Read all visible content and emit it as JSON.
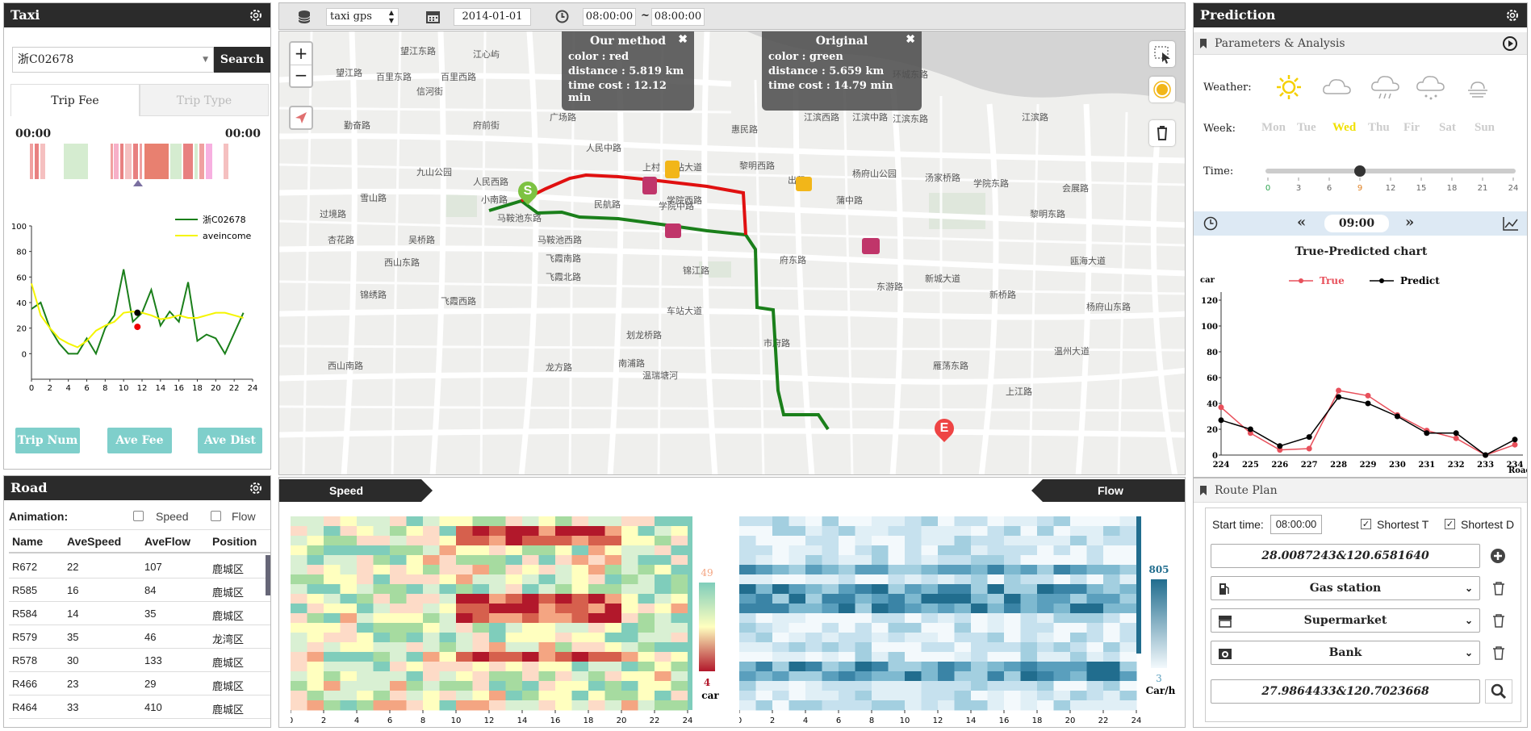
{
  "taxi_panel": {
    "title": "Taxi",
    "plate_value": "浙C02678",
    "search_label": "Search",
    "tabs": [
      "Trip Fee",
      "Trip Type"
    ],
    "time_start": "00:00",
    "time_end": "00:00",
    "buttons": [
      "Trip Num",
      "Ave Fee",
      "Ave Dist"
    ]
  },
  "income_chart": {
    "legend": [
      "浙C02678",
      "aveincome"
    ],
    "chart_data": {
      "type": "line",
      "x": [
        0,
        1,
        2,
        3,
        4,
        5,
        6,
        7,
        8,
        9,
        10,
        11,
        12,
        13,
        14,
        15,
        16,
        17,
        18,
        19,
        20,
        21,
        22,
        23,
        24
      ],
      "series": [
        {
          "name": "浙C02678",
          "values": [
            35,
            40,
            20,
            8,
            0,
            0,
            12,
            0,
            20,
            30,
            66,
            25,
            32,
            50,
            22,
            33,
            25,
            56,
            10,
            15,
            12,
            0,
            16,
            32,
            null
          ]
        },
        {
          "name": "aveincome",
          "values": [
            55,
            30,
            20,
            12,
            8,
            5,
            10,
            18,
            22,
            25,
            32,
            33,
            32,
            30,
            27,
            28,
            30,
            28,
            28,
            30,
            32,
            32,
            30,
            28,
            null
          ]
        }
      ],
      "yticks": [
        0,
        20,
        40,
        60,
        80,
        100
      ],
      "xticks": [
        0,
        2,
        4,
        6,
        8,
        10,
        12,
        14,
        16,
        18,
        20,
        22,
        24
      ],
      "ylim": [
        -20,
        100
      ],
      "markers": [
        {
          "x": 11.5,
          "y": 32,
          "color": "#000"
        },
        {
          "x": 11.5,
          "y": 21,
          "color": "#e00"
        }
      ]
    }
  },
  "top_bar": {
    "dataset": "taxi gps",
    "date": "2014-01-01",
    "time_from": "08:00:00",
    "tilde": "~",
    "time_to": "08:00:00"
  },
  "map": {
    "zoom_in": "+",
    "zoom_out": "−",
    "tooltip_ours": {
      "title": "Our method",
      "color": "color : red",
      "distance": "distance : 5.819 km",
      "time": "time cost : 12.12 min"
    },
    "tooltip_orig": {
      "title": "Original",
      "color": "color : green",
      "distance": "distance : 5.659 km",
      "time": "time cost : 14.79 min"
    },
    "start_marker": "S",
    "end_marker": "E",
    "labels": [
      "望江东路",
      "江心屿",
      "望江路",
      "百里东路",
      "百里西路",
      "信河街",
      "府前街",
      "广场路",
      "人民西路",
      "小南路",
      "雪山路",
      "过境路",
      "马鞍池东路",
      "吴桥路",
      "杏花路",
      "西山东路",
      "马鞍池西路",
      "锦绣路",
      "飞霞南路",
      "飞霞北路",
      "人民中路",
      "民航路",
      "学院中路",
      "车站大道",
      "上村",
      "惠民路",
      "黎明西路",
      "出租",
      "杨府山公园",
      "汤家桥路",
      "学院东路",
      "会展路",
      "江滨西路",
      "江滨中路",
      "江滨东路",
      "勤奋路",
      "九山公园",
      "划龙桥路",
      "龙方路",
      "南浦路",
      "市府路",
      "府东路",
      "新城大道",
      "瓯海大道",
      "雁荡东路",
      "上江路",
      "西山南路",
      "环城东路",
      "江滨路",
      "车站大道",
      "学院西路",
      "蒲中路",
      "温瑞塘河",
      "锦江路",
      "黎明东路",
      "东游路",
      "新桥路",
      "杨府山东路",
      "飞霞西路",
      "温州大道"
    ]
  },
  "prediction_panel": {
    "title": "Prediction",
    "params_title": "Parameters & Analysis",
    "weather_label": "Weather:",
    "week_label": "Week:",
    "week_days": [
      "Mon",
      "Tue",
      "Wed",
      "Thu",
      "Fir",
      "Sat",
      "Sun"
    ],
    "week_selected": "Wed",
    "time_label": "Time:",
    "time_ticks": [
      "0",
      "3",
      "6",
      "9",
      "12",
      "15",
      "18",
      "21",
      "24"
    ],
    "time_value": 9,
    "clock_time": "09:00",
    "chart_title": "True-Predicted chart",
    "legend": [
      "True",
      "Predict"
    ],
    "y_unit": "car",
    "x_unit": "Road"
  },
  "pred_chart": {
    "chart_data": {
      "type": "line",
      "categories": [
        "224",
        "225",
        "226",
        "227",
        "228",
        "229",
        "230",
        "231",
        "232",
        "233",
        "234"
      ],
      "series": [
        {
          "name": "True",
          "values": [
            37,
            17,
            4,
            5,
            50,
            46,
            31,
            19,
            13,
            0,
            8
          ]
        },
        {
          "name": "Predict",
          "values": [
            27,
            20,
            7,
            14,
            45,
            40,
            30,
            17,
            17,
            0,
            12
          ]
        }
      ],
      "yticks": [
        0,
        20,
        40,
        60,
        80,
        100,
        120
      ],
      "ylim": [
        0,
        120
      ]
    }
  },
  "road_panel": {
    "title": "Road",
    "animation_label": "Animation:",
    "opt_speed": "Speed",
    "opt_flow": "Flow",
    "columns": [
      "Name",
      "AveSpeed",
      "AveFlow",
      "Position"
    ],
    "rows": [
      [
        "R672",
        "22",
        "107",
        "鹿城区"
      ],
      [
        "R585",
        "16",
        "84",
        "鹿城区"
      ],
      [
        "R584",
        "14",
        "35",
        "鹿城区"
      ],
      [
        "R579",
        "35",
        "46",
        "龙湾区"
      ],
      [
        "R578",
        "30",
        "133",
        "鹿城区"
      ],
      [
        "R466",
        "23",
        "29",
        "鹿城区"
      ],
      [
        "R464",
        "33",
        "410",
        "鹿城区"
      ]
    ]
  },
  "heatmaps": {
    "speed_label": "Speed",
    "flow_label": "Flow",
    "speed_max": "49",
    "speed_min": "4",
    "speed_unit": "car",
    "flow_max": "805",
    "flow_min": "3",
    "flow_unit": "Car/h",
    "xticks": [
      "0",
      "2",
      "4",
      "6",
      "8",
      "10",
      "12",
      "14",
      "16",
      "18",
      "20",
      "22",
      "24"
    ]
  },
  "route_panel": {
    "title": "Route Plan",
    "start_label": "Start time:",
    "start_value": "08:00:00",
    "opt_t": "Shortest T",
    "opt_d": "Shortest D",
    "origin": "28.0087243&120.6581640",
    "stops": [
      "Gas station",
      "Supermarket",
      "Bank"
    ],
    "destination": "27.9864433&120.7023668"
  }
}
